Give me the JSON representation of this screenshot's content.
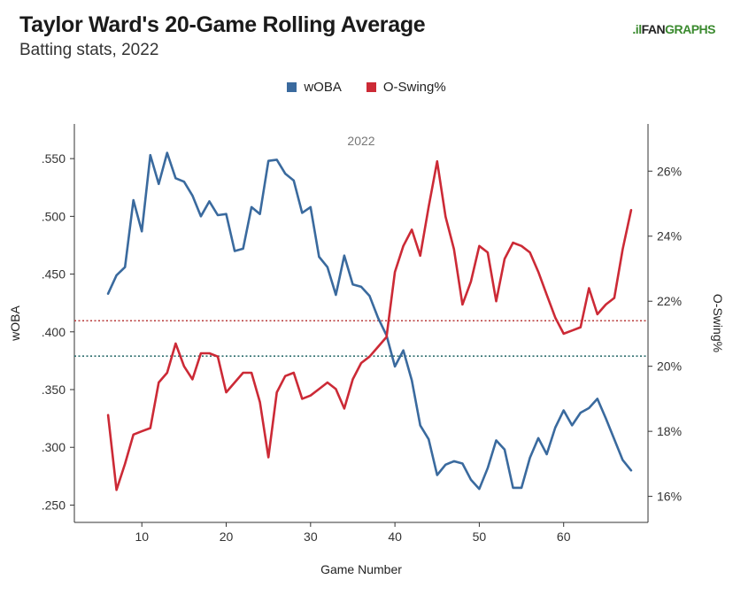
{
  "header": {
    "title": "Taylor Ward's 20-Game Rolling Average",
    "subtitle": "Batting stats, 2022"
  },
  "logo": {
    "mark": ".il",
    "fan": "FAN",
    "graphs": "GRAPHS"
  },
  "colors": {
    "woba": "#3a6a9e",
    "oswing": "#cc2a36",
    "woba_avg": "#2e6e6e",
    "oswing_avg": "#b83a3a"
  },
  "chart_data": {
    "type": "line",
    "panel_label": "2022",
    "xlabel": "Game Number",
    "ylabel_left": "wOBA",
    "ylabel_right": "O-Swing%",
    "xlim": [
      2,
      70
    ],
    "ylim_left": [
      0.235,
      0.58
    ],
    "ylim_right": [
      15.2,
      27.45
    ],
    "x_ticks": [
      10,
      20,
      30,
      40,
      50,
      60
    ],
    "y_ticks_left": [
      {
        "value": 0.25,
        "label": ".250"
      },
      {
        "value": 0.3,
        "label": ".300"
      },
      {
        "value": 0.35,
        "label": ".350"
      },
      {
        "value": 0.4,
        "label": ".400"
      },
      {
        "value": 0.45,
        "label": ".450"
      },
      {
        "value": 0.5,
        "label": ".500"
      },
      {
        "value": 0.55,
        "label": ".550"
      }
    ],
    "y_ticks_right": [
      {
        "value": 16,
        "label": "16%"
      },
      {
        "value": 18,
        "label": "18%"
      },
      {
        "value": 20,
        "label": "20%"
      },
      {
        "value": 22,
        "label": "22%"
      },
      {
        "value": 24,
        "label": "24%"
      },
      {
        "value": 26,
        "label": "26%"
      }
    ],
    "reference_lines": [
      {
        "series": "wOBA",
        "axis": "left",
        "value": 0.379
      },
      {
        "series": "O-Swing%",
        "axis": "right",
        "value": 21.4
      }
    ],
    "legend": "top-center",
    "series": [
      {
        "name": "wOBA",
        "axis": "left",
        "x": [
          6,
          7,
          8,
          9,
          10,
          11,
          12,
          13,
          14,
          15,
          16,
          17,
          18,
          19,
          20,
          21,
          22,
          23,
          24,
          25,
          26,
          27,
          28,
          29,
          30,
          31,
          32,
          33,
          34,
          35,
          36,
          37,
          38,
          39,
          40,
          41,
          42,
          43,
          44,
          45,
          46,
          47,
          48,
          49,
          50,
          51,
          52,
          53,
          54,
          55,
          56,
          57,
          58,
          59,
          60,
          61,
          62,
          63,
          64,
          65,
          66,
          67,
          68
        ],
        "y": [
          0.433,
          0.449,
          0.456,
          0.514,
          0.487,
          0.553,
          0.528,
          0.555,
          0.533,
          0.53,
          0.518,
          0.5,
          0.513,
          0.501,
          0.502,
          0.47,
          0.472,
          0.508,
          0.502,
          0.548,
          0.549,
          0.537,
          0.531,
          0.503,
          0.508,
          0.465,
          0.456,
          0.432,
          0.466,
          0.441,
          0.439,
          0.431,
          0.412,
          0.397,
          0.37,
          0.384,
          0.358,
          0.319,
          0.307,
          0.276,
          0.285,
          0.288,
          0.286,
          0.272,
          0.264,
          0.282,
          0.306,
          0.298,
          0.265,
          0.265,
          0.291,
          0.308,
          0.294,
          0.317,
          0.332,
          0.319,
          0.33,
          0.334,
          0.342,
          0.325,
          0.307,
          0.289,
          0.28
        ]
      },
      {
        "name": "O-Swing%",
        "axis": "right",
        "x": [
          6,
          7,
          8,
          9,
          10,
          11,
          12,
          13,
          14,
          15,
          16,
          17,
          18,
          19,
          20,
          21,
          22,
          23,
          24,
          25,
          26,
          27,
          28,
          29,
          30,
          31,
          32,
          33,
          34,
          35,
          36,
          37,
          38,
          39,
          40,
          41,
          42,
          43,
          44,
          45,
          46,
          47,
          48,
          49,
          50,
          51,
          52,
          53,
          54,
          55,
          56,
          57,
          58,
          59,
          60,
          61,
          62,
          63,
          64,
          65,
          66,
          67,
          68
        ],
        "y": [
          18.5,
          16.2,
          17.0,
          17.9,
          18.0,
          18.1,
          19.5,
          19.8,
          20.7,
          20.0,
          19.6,
          20.4,
          20.4,
          20.3,
          19.2,
          19.5,
          19.8,
          19.8,
          18.9,
          17.2,
          19.2,
          19.7,
          19.8,
          19.0,
          19.1,
          19.3,
          19.5,
          19.3,
          18.7,
          19.6,
          20.1,
          20.3,
          20.6,
          20.9,
          22.9,
          23.7,
          24.2,
          23.4,
          24.9,
          26.3,
          24.6,
          23.6,
          21.9,
          22.6,
          23.7,
          23.5,
          22.0,
          23.3,
          23.8,
          23.7,
          23.5,
          22.9,
          22.2,
          21.5,
          21.0,
          21.1,
          21.2,
          22.4,
          21.6,
          21.9,
          22.1,
          23.6,
          24.8
        ]
      }
    ]
  }
}
